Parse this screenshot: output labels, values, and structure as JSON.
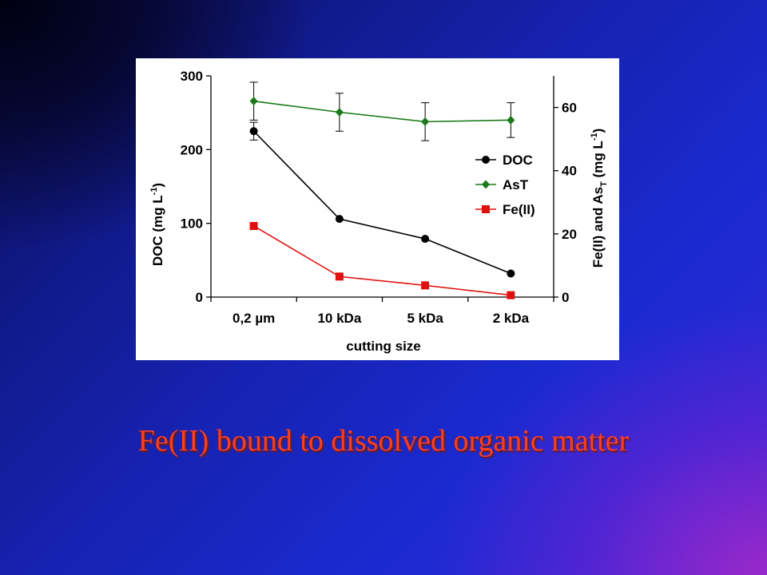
{
  "slide": {
    "caption": "Fe(II) bound to dissolved organic matter"
  },
  "chart_data": {
    "type": "line",
    "categories": [
      "0,2 µm",
      "10 kDa",
      "5 kDa",
      "2 kDa"
    ],
    "xlabel": "cutting size",
    "ylabel_left": "DOC (mg L",
    "ylabel_left_sup": "-1",
    "ylabel_left_end": ")",
    "ylabel_right_a": "Fe(II) and As",
    "ylabel_right_sub": "T",
    "ylabel_right_b": " (mg L",
    "ylabel_right_sup": "-1",
    "ylabel_right_c": ")",
    "ylim_left": [
      0,
      300
    ],
    "yticks_left": [
      0,
      100,
      200,
      300
    ],
    "ylim_right": [
      0,
      70
    ],
    "yticks_right": [
      0,
      20,
      40,
      60
    ],
    "legend_position": "right-inside",
    "series": [
      {
        "name": "DOC",
        "axis": "left",
        "color": "#000000",
        "marker": "circle",
        "values": [
          225,
          106,
          79,
          32
        ],
        "errors": [
          12,
          0,
          0,
          0
        ]
      },
      {
        "name": "AsT",
        "axis": "right",
        "color": "#1a7a1a",
        "marker": "diamond",
        "values": [
          62,
          58.5,
          55.5,
          56
        ],
        "errors": [
          6,
          6,
          6,
          5.5
        ]
      },
      {
        "name": "Fe(II)",
        "axis": "right",
        "color": "#e01010",
        "marker": "square",
        "values": [
          22.5,
          6.5,
          3.7,
          0.6
        ],
        "errors": [
          0,
          0,
          0,
          0
        ]
      }
    ]
  }
}
